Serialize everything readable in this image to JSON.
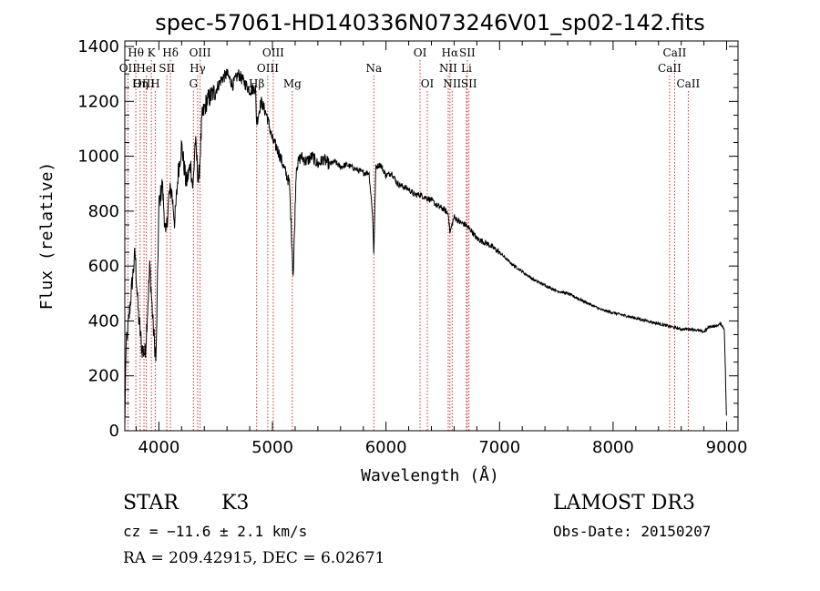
{
  "chart_data": {
    "type": "line",
    "title": "spec-57061-HD140336N073246V01_sp02-142.fits",
    "xlabel": "Wavelength (Å)",
    "ylabel": "Flux (relative)",
    "xlim": [
      3700,
      9100
    ],
    "ylim": [
      0,
      1420
    ],
    "xticks": [
      4000,
      5000,
      6000,
      7000,
      8000,
      9000
    ],
    "yticks": [
      0,
      200,
      400,
      600,
      800,
      1000,
      1200,
      1400
    ],
    "grid": false,
    "spectrum_anchor_points": [
      [
        3700,
        20
      ],
      [
        3710,
        300
      ],
      [
        3730,
        380
      ],
      [
        3760,
        520
      ],
      [
        3790,
        650
      ],
      [
        3820,
        420
      ],
      [
        3850,
        300
      ],
      [
        3880,
        280
      ],
      [
        3920,
        600
      ],
      [
        3950,
        380
      ],
      [
        3975,
        250
      ],
      [
        4000,
        820
      ],
      [
        4030,
        900
      ],
      [
        4060,
        700
      ],
      [
        4090,
        860
      ],
      [
        4110,
        880
      ],
      [
        4140,
        760
      ],
      [
        4170,
        940
      ],
      [
        4200,
        1040
      ],
      [
        4240,
        900
      ],
      [
        4280,
        970
      ],
      [
        4300,
        880
      ],
      [
        4320,
        1060
      ],
      [
        4350,
        900
      ],
      [
        4380,
        1140
      ],
      [
        4420,
        1200
      ],
      [
        4460,
        1220
      ],
      [
        4500,
        1240
      ],
      [
        4550,
        1280
      ],
      [
        4600,
        1300
      ],
      [
        4650,
        1260
      ],
      [
        4700,
        1300
      ],
      [
        4750,
        1270
      ],
      [
        4800,
        1240
      ],
      [
        4850,
        1250
      ],
      [
        4861,
        1120
      ],
      [
        4900,
        1200
      ],
      [
        4950,
        1150
      ],
      [
        5000,
        1060
      ],
      [
        5050,
        1020
      ],
      [
        5100,
        960
      ],
      [
        5150,
        900
      ],
      [
        5183,
        560
      ],
      [
        5210,
        960
      ],
      [
        5250,
        1000
      ],
      [
        5300,
        980
      ],
      [
        5350,
        1000
      ],
      [
        5400,
        970
      ],
      [
        5450,
        990
      ],
      [
        5500,
        970
      ],
      [
        5550,
        980
      ],
      [
        5600,
        960
      ],
      [
        5650,
        970
      ],
      [
        5700,
        960
      ],
      [
        5750,
        950
      ],
      [
        5800,
        940
      ],
      [
        5850,
        940
      ],
      [
        5880,
        800
      ],
      [
        5893,
        650
      ],
      [
        5910,
        960
      ],
      [
        5950,
        970
      ],
      [
        6000,
        930
      ],
      [
        6050,
        940
      ],
      [
        6100,
        900
      ],
      [
        6150,
        890
      ],
      [
        6200,
        880
      ],
      [
        6250,
        860
      ],
      [
        6300,
        860
      ],
      [
        6350,
        850
      ],
      [
        6400,
        840
      ],
      [
        6450,
        820
      ],
      [
        6500,
        810
      ],
      [
        6550,
        790
      ],
      [
        6563,
        720
      ],
      [
        6600,
        780
      ],
      [
        6650,
        760
      ],
      [
        6700,
        750
      ],
      [
        6750,
        730
      ],
      [
        6800,
        700
      ],
      [
        6900,
        680
      ],
      [
        7000,
        650
      ],
      [
        7100,
        610
      ],
      [
        7200,
        580
      ],
      [
        7300,
        550
      ],
      [
        7400,
        530
      ],
      [
        7500,
        510
      ],
      [
        7600,
        500
      ],
      [
        7700,
        480
      ],
      [
        7800,
        460
      ],
      [
        7900,
        440
      ],
      [
        8000,
        430
      ],
      [
        8100,
        420
      ],
      [
        8200,
        410
      ],
      [
        8300,
        400
      ],
      [
        8400,
        390
      ],
      [
        8500,
        380
      ],
      [
        8600,
        370
      ],
      [
        8700,
        370
      ],
      [
        8800,
        360
      ],
      [
        8850,
        380
      ],
      [
        8900,
        380
      ],
      [
        8950,
        390
      ],
      [
        8980,
        370
      ],
      [
        9000,
        20
      ]
    ],
    "spectral_lines": [
      {
        "label": "Hθ",
        "x": 3797,
        "row": 1
      },
      {
        "label": "OII",
        "x": 3727,
        "row": 2
      },
      {
        "label": "OIII",
        "x": 3869,
        "row": 3
      },
      {
        "label": "HeI",
        "x": 3889,
        "row": 2
      },
      {
        "label": "Hη",
        "x": 3835,
        "row": 3
      },
      {
        "label": "K",
        "x": 3934,
        "row": 1
      },
      {
        "label": "SII",
        "x": 4070,
        "row": 2
      },
      {
        "label": "H",
        "x": 3968,
        "row": 3
      },
      {
        "label": "Hδ",
        "x": 4102,
        "row": 1
      },
      {
        "label": "OIII",
        "x": 4363,
        "row": 1
      },
      {
        "label": "Hγ",
        "x": 4341,
        "row": 2
      },
      {
        "label": "G",
        "x": 4304,
        "row": 3
      },
      {
        "label": "Hβ",
        "x": 4861,
        "row": 3
      },
      {
        "label": "OIII",
        "x": 5007,
        "row": 1
      },
      {
        "label": "OIII",
        "x": 4959,
        "row": 2
      },
      {
        "label": "Mg",
        "x": 5175,
        "row": 3
      },
      {
        "label": "Na",
        "x": 5893,
        "row": 2
      },
      {
        "label": "OI",
        "x": 6300,
        "row": 1
      },
      {
        "label": "OI",
        "x": 6364,
        "row": 3
      },
      {
        "label": "Hα",
        "x": 6563,
        "row": 1
      },
      {
        "label": "SII",
        "x": 6716,
        "row": 1
      },
      {
        "label": "NII",
        "x": 6548,
        "row": 2
      },
      {
        "label": "Li",
        "x": 6708,
        "row": 2
      },
      {
        "label": "NII",
        "x": 6583,
        "row": 3
      },
      {
        "label": "SII",
        "x": 6731,
        "row": 3
      },
      {
        "label": "CaII",
        "x": 8542,
        "row": 1
      },
      {
        "label": "CaII",
        "x": 8498,
        "row": 2
      },
      {
        "label": "CaII",
        "x": 8662,
        "row": 3
      }
    ]
  },
  "info": {
    "object_class": "STAR",
    "subclass": "K3",
    "survey": "LAMOST DR3",
    "redshift": "cz = −11.6 ± 2.1 km/s",
    "obs_date": "Obs-Date: 20150207",
    "coords": "RA = 209.42915, DEC =   6.02671"
  }
}
